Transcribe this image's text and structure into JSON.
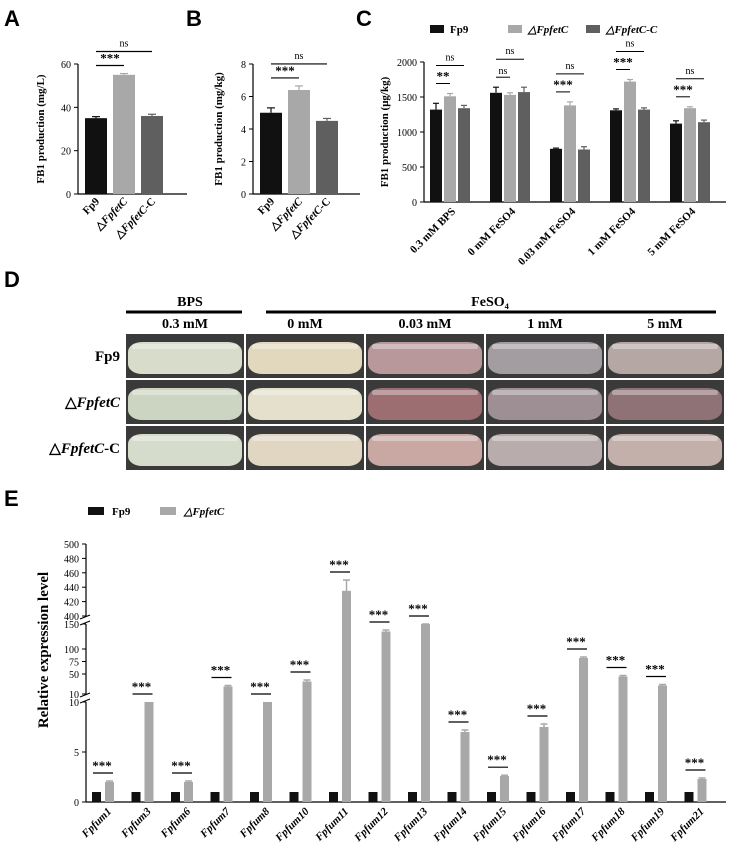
{
  "panels": {
    "A": "A",
    "B": "B",
    "C": "C",
    "D": "D",
    "E": "E"
  },
  "colors": {
    "fp9": "#111111",
    "dfpfetc": "#a8a8a8",
    "complement": "#5f5f5f"
  },
  "chart_data": [
    {
      "type": "bar",
      "panel": "A",
      "categories": [
        "Fp9",
        "△FpfetC",
        "△FpfetC-C"
      ],
      "values": [
        35,
        55,
        36
      ],
      "errors": [
        0.7,
        0.6,
        0.8
      ],
      "ylabel": "FB1 production (mg/L)",
      "ylim": [
        0,
        60
      ],
      "yticks": [
        0,
        20,
        40,
        60
      ],
      "annotations": [
        {
          "pair": [
            0,
            1
          ],
          "text": "***"
        },
        {
          "pair": [
            0,
            2
          ],
          "text": "ns"
        }
      ]
    },
    {
      "type": "bar",
      "panel": "B",
      "categories": [
        "Fp9",
        "△FpfetC",
        "△FpfetC-C"
      ],
      "values": [
        5.0,
        6.4,
        4.5
      ],
      "errors": [
        0.3,
        0.25,
        0.15
      ],
      "ylabel": "FB1 production (mg/kg)",
      "ylim": [
        0,
        8
      ],
      "yticks": [
        0,
        2,
        4,
        6,
        8
      ],
      "annotations": [
        {
          "pair": [
            0,
            1
          ],
          "text": "***"
        },
        {
          "pair": [
            0,
            2
          ],
          "text": "ns"
        }
      ]
    },
    {
      "type": "bar",
      "panel": "C",
      "categories": [
        "0.3 mM BPS",
        "0 mM FeSO4",
        "0.03 mM FeSO4",
        "1 mM FeSO4",
        "5 mM FeSO4"
      ],
      "series": [
        {
          "name": "Fp9",
          "values": [
            1320,
            1560,
            760,
            1310,
            1120
          ],
          "errors": [
            90,
            80,
            10,
            20,
            40
          ]
        },
        {
          "name": "△FpfetC",
          "values": [
            1510,
            1530,
            1380,
            1720,
            1340
          ],
          "errors": [
            40,
            30,
            50,
            30,
            20
          ]
        },
        {
          "name": "△FpfetC-C",
          "values": [
            1340,
            1570,
            750,
            1320,
            1140
          ],
          "errors": [
            40,
            70,
            40,
            25,
            30
          ]
        }
      ],
      "ylabel": "FB1 production (μg/kg)",
      "ylim": [
        0,
        2000
      ],
      "yticks": [
        0,
        500,
        1000,
        1500,
        2000
      ],
      "annotations": [
        {
          "group": 0,
          "inner": "**",
          "outer": "ns"
        },
        {
          "group": 1,
          "inner": "ns",
          "outer": "ns"
        },
        {
          "group": 2,
          "inner": "***",
          "outer": "ns"
        },
        {
          "group": 3,
          "inner": "***",
          "outer": "ns"
        },
        {
          "group": 4,
          "inner": "***",
          "outer": "ns"
        }
      ]
    },
    {
      "type": "bar",
      "panel": "E",
      "categories": [
        "Fpfum1",
        "Fpfum3",
        "Fpfum6",
        "Fpfum7",
        "Fpfum8",
        "Fpfum10",
        "Fpfum11",
        "Fpfum12",
        "Fpfum13",
        "Fpfum14",
        "Fpfum15",
        "Fpfum16",
        "Fpfum17",
        "Fpfum18",
        "Fpfum19",
        "Fpfum21"
      ],
      "series": [
        {
          "name": "Fp9",
          "values": [
            1,
            1,
            1,
            1,
            1,
            1,
            1,
            1,
            1,
            1,
            1,
            1,
            1,
            1,
            1,
            1
          ]
        },
        {
          "name": "△FpfetC",
          "values": [
            2.0,
            10,
            2.0,
            25,
            10,
            35,
            435,
            135,
            168,
            7.0,
            2.6,
            7.5,
            82,
            45,
            27,
            2.3
          ],
          "errors": [
            0.1,
            0,
            0.1,
            2,
            0,
            3,
            15,
            3,
            4,
            0.2,
            0.08,
            0.3,
            2,
            2,
            2,
            0.1
          ]
        }
      ],
      "ylabel": "Relative expression level",
      "y_axis_segments": [
        {
          "range": [
            0,
            10
          ],
          "ticks": [
            0,
            5,
            10
          ]
        },
        {
          "range": [
            10,
            150
          ],
          "ticks": [
            10,
            50,
            75,
            100,
            150
          ]
        },
        {
          "range": [
            400,
            500
          ],
          "ticks": [
            400,
            420,
            440,
            460,
            480,
            500
          ]
        }
      ],
      "significance": "***"
    }
  ],
  "panel_d": {
    "bps_header": "BPS",
    "feso4_header": "FeSO₄",
    "columns": [
      "0.3 mM",
      "0 mM",
      "0.03 mM",
      "1 mM",
      "5 mM"
    ],
    "rows": [
      {
        "prefix": "",
        "name": "Fp9",
        "suffix": ""
      },
      {
        "prefix": "△",
        "name": "FpfetC",
        "suffix": ""
      },
      {
        "prefix": "△",
        "name": "FpfetC",
        "suffix": "-C"
      }
    ],
    "culture_colors": [
      [
        "#d8dccb",
        "#e2d8bd",
        "#b8989a",
        "#a39ca1",
        "#b5a7a4"
      ],
      [
        "#ccd5c1",
        "#e4e0cc",
        "#9c6e72",
        "#9d8f94",
        "#8e7276"
      ],
      [
        "#d6dccb",
        "#e1d6c1",
        "#c9a8a3",
        "#b9acac",
        "#c3b0aa"
      ]
    ]
  }
}
